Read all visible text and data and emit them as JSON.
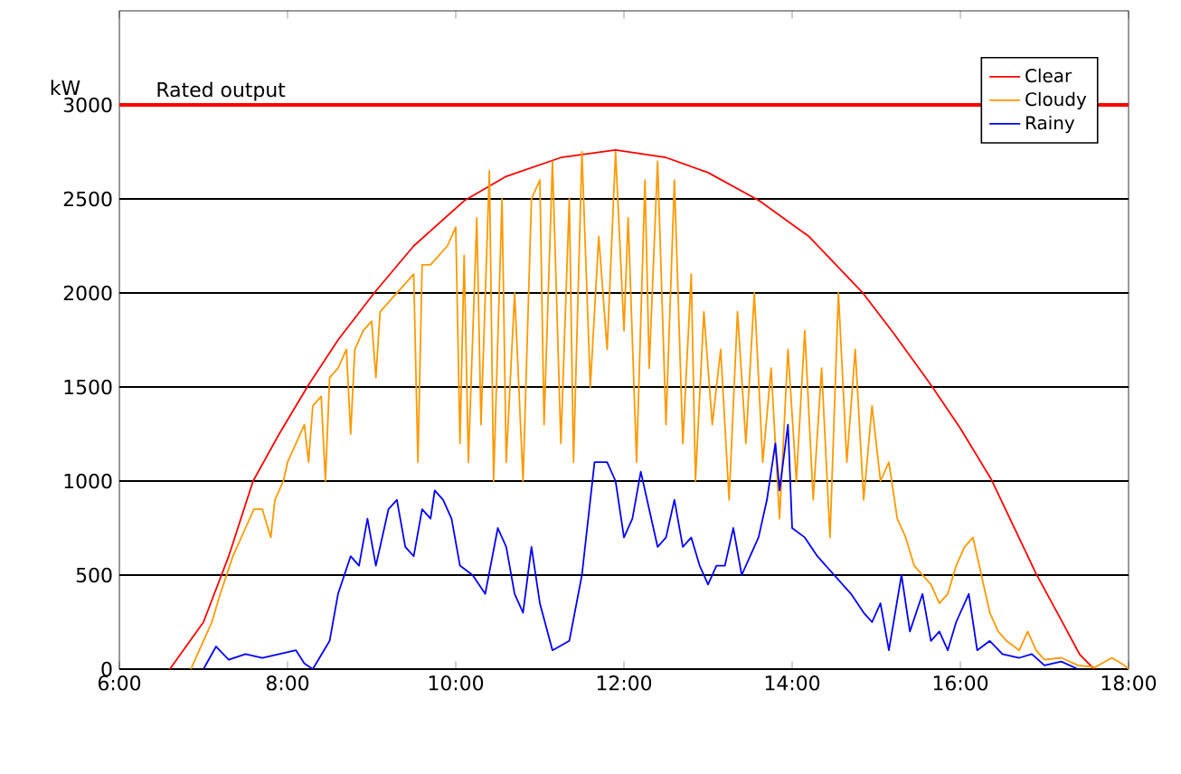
{
  "chart_data": {
    "type": "line",
    "ylabel": "kW",
    "xlim": [
      6,
      18
    ],
    "ylim": [
      0,
      3500
    ],
    "xticks": [
      {
        "value": 6,
        "label": "6:00"
      },
      {
        "value": 8,
        "label": "8:00"
      },
      {
        "value": 10,
        "label": "10:00"
      },
      {
        "value": 12,
        "label": "12:00"
      },
      {
        "value": 14,
        "label": "14:00"
      },
      {
        "value": 16,
        "label": "16:00"
      },
      {
        "value": 18,
        "label": "18:00"
      }
    ],
    "yticks": [
      0,
      500,
      1000,
      1500,
      2000,
      2500,
      3000
    ],
    "grid": "y",
    "legend": "top right",
    "ref_lines": [
      {
        "axis": "y",
        "value": 3000,
        "label": "Rated output",
        "color": "#ff0000"
      }
    ],
    "series": [
      {
        "name": "Clear",
        "color": "#ff0000",
        "x": [
          6.6,
          7.0,
          7.3,
          7.59,
          7.9,
          8.24,
          8.6,
          9.03,
          9.5,
          10.1,
          10.6,
          11.25,
          11.9,
          12.5,
          13.0,
          13.61,
          14.2,
          14.84,
          15.2,
          15.66,
          16.0,
          16.37,
          16.9,
          17.2,
          17.42,
          17.59
        ],
        "values": [
          0,
          250,
          600,
          1000,
          1250,
          1505,
          1750,
          2000,
          2250,
          2490,
          2620,
          2720,
          2760,
          2720,
          2640,
          2490,
          2300,
          2000,
          1790,
          1505,
          1280,
          1007,
          508,
          260,
          77,
          0
        ]
      },
      {
        "name": "Cloudy",
        "color": "#ff9900",
        "x": [
          6.85,
          7.0,
          7.1,
          7.2,
          7.35,
          7.5,
          7.6,
          7.7,
          7.8,
          7.85,
          7.95,
          8.0,
          8.1,
          8.2,
          8.25,
          8.3,
          8.4,
          8.45,
          8.5,
          8.6,
          8.7,
          8.75,
          8.8,
          8.9,
          9.0,
          9.05,
          9.1,
          9.2,
          9.3,
          9.4,
          9.5,
          9.55,
          9.6,
          9.7,
          9.8,
          9.9,
          10.0,
          10.05,
          10.1,
          10.15,
          10.25,
          10.3,
          10.4,
          10.45,
          10.55,
          10.6,
          10.7,
          10.8,
          10.9,
          11.0,
          11.05,
          11.15,
          11.25,
          11.35,
          11.4,
          11.5,
          11.6,
          11.7,
          11.8,
          11.9,
          12.0,
          12.05,
          12.15,
          12.25,
          12.3,
          12.4,
          12.5,
          12.6,
          12.7,
          12.8,
          12.85,
          12.95,
          13.05,
          13.15,
          13.25,
          13.35,
          13.45,
          13.55,
          13.65,
          13.75,
          13.85,
          13.95,
          14.05,
          14.15,
          14.25,
          14.35,
          14.45,
          14.55,
          14.65,
          14.75,
          14.85,
          14.95,
          15.05,
          15.15,
          15.25,
          15.35,
          15.45,
          15.55,
          15.65,
          15.75,
          15.85,
          15.95,
          16.05,
          16.15,
          16.25,
          16.35,
          16.45,
          16.55,
          16.7,
          16.8,
          16.9,
          17.0,
          17.2,
          17.4,
          17.6,
          17.8,
          17.95,
          18.0
        ],
        "values": [
          0,
          150,
          250,
          400,
          600,
          750,
          850,
          850,
          700,
          900,
          1000,
          1100,
          1200,
          1300,
          1100,
          1400,
          1450,
          1000,
          1550,
          1600,
          1700,
          1250,
          1700,
          1800,
          1850,
          1550,
          1900,
          1950,
          2000,
          2050,
          2100,
          1100,
          2150,
          2150,
          2200,
          2250,
          2350,
          1200,
          2200,
          1100,
          2400,
          1300,
          2650,
          1000,
          2500,
          1100,
          2000,
          1000,
          2500,
          2600,
          1300,
          2700,
          1200,
          2500,
          1100,
          2750,
          1500,
          2300,
          1700,
          2750,
          1800,
          2400,
          1100,
          2600,
          1600,
          2700,
          1300,
          2600,
          1200,
          2100,
          1000,
          1900,
          1300,
          1700,
          900,
          1900,
          1200,
          2000,
          1100,
          1600,
          800,
          1700,
          1000,
          1800,
          900,
          1600,
          700,
          2000,
          1100,
          1700,
          900,
          1400,
          1000,
          1100,
          800,
          700,
          550,
          500,
          450,
          350,
          400,
          550,
          650,
          700,
          500,
          300,
          200,
          150,
          100,
          200,
          100,
          50,
          60,
          20,
          10,
          60,
          20,
          0
        ]
      },
      {
        "name": "Rainy",
        "color": "#0000ff",
        "x": [
          7.0,
          7.15,
          7.3,
          7.5,
          7.7,
          7.9,
          8.1,
          8.2,
          8.3,
          8.5,
          8.6,
          8.75,
          8.85,
          8.95,
          9.05,
          9.2,
          9.3,
          9.4,
          9.5,
          9.6,
          9.7,
          9.75,
          9.85,
          9.95,
          10.05,
          10.2,
          10.35,
          10.5,
          10.6,
          10.7,
          10.8,
          10.9,
          11.0,
          11.15,
          11.35,
          11.5,
          11.65,
          11.8,
          11.9,
          12.0,
          12.1,
          12.2,
          12.3,
          12.4,
          12.5,
          12.6,
          12.7,
          12.8,
          12.9,
          13.0,
          13.1,
          13.2,
          13.3,
          13.4,
          13.5,
          13.6,
          13.7,
          13.8,
          13.85,
          13.95,
          14.0,
          14.15,
          14.3,
          14.5,
          14.7,
          14.85,
          14.95,
          15.05,
          15.15,
          15.3,
          15.4,
          15.55,
          15.65,
          15.75,
          15.85,
          15.95,
          16.1,
          16.2,
          16.35,
          16.5,
          16.7,
          16.85,
          17.0,
          17.2,
          17.4
        ],
        "values": [
          0,
          120,
          50,
          80,
          60,
          80,
          100,
          30,
          0,
          150,
          400,
          600,
          550,
          800,
          550,
          850,
          900,
          650,
          600,
          850,
          800,
          950,
          900,
          800,
          550,
          500,
          400,
          750,
          650,
          400,
          300,
          650,
          350,
          100,
          150,
          500,
          1100,
          1100,
          1000,
          700,
          800,
          1050,
          850,
          650,
          700,
          900,
          650,
          700,
          550,
          450,
          550,
          550,
          750,
          500,
          600,
          700,
          900,
          1200,
          950,
          1300,
          750,
          700,
          600,
          500,
          400,
          300,
          250,
          350,
          100,
          500,
          200,
          400,
          150,
          200,
          100,
          250,
          400,
          100,
          150,
          80,
          60,
          80,
          20,
          40,
          0
        ]
      }
    ]
  }
}
